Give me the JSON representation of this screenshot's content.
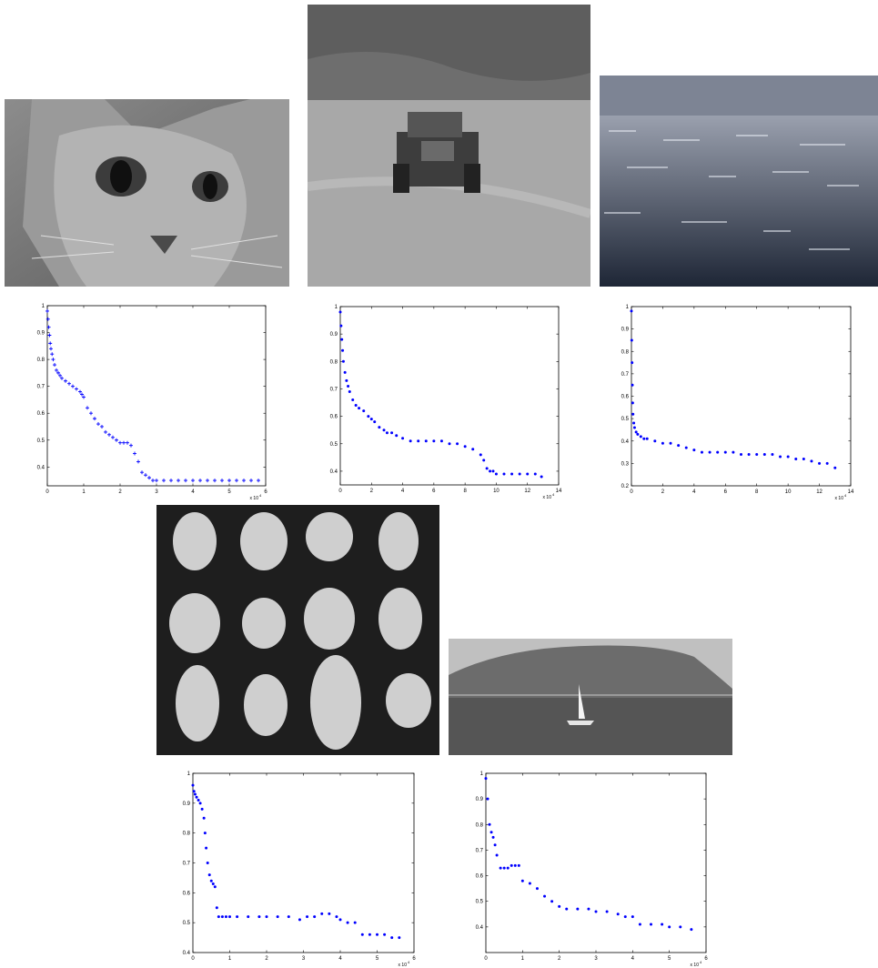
{
  "photos": [
    {
      "subject": "cat",
      "icon": "cat-photo-icon"
    },
    {
      "subject": "tank",
      "icon": "tank-photo-icon"
    },
    {
      "subject": "sea",
      "icon": "sea-photo-icon"
    },
    {
      "subject": "potatoes",
      "icon": "potatoes-photo-icon"
    },
    {
      "subject": "sailboat",
      "icon": "sailboat-photo-icon"
    }
  ],
  "colors": {
    "marker": "#0000ff",
    "axes": "#000000"
  },
  "chart_data": [
    {
      "type": "scatter",
      "marker": "plus",
      "xlim": [
        0,
        6
      ],
      "ylim": [
        0.33,
        1
      ],
      "xticks": [
        "0",
        "1",
        "2",
        "3",
        "4",
        "5",
        "6"
      ],
      "yticks": [
        "0.4",
        "0.5",
        "0.6",
        "0.7",
        "0.8",
        "0.9",
        "1"
      ],
      "ytick_values": [
        0.4,
        0.5,
        0.6,
        0.7,
        0.8,
        0.9,
        1
      ],
      "x_exponent": "x 10",
      "x_exponent_power": "4",
      "x": [
        0,
        0.02,
        0.04,
        0.06,
        0.08,
        0.1,
        0.13,
        0.16,
        0.2,
        0.25,
        0.3,
        0.35,
        0.4,
        0.5,
        0.6,
        0.7,
        0.8,
        0.9,
        0.95,
        1.0,
        1.1,
        1.2,
        1.3,
        1.4,
        1.5,
        1.6,
        1.7,
        1.8,
        1.9,
        2.0,
        2.1,
        2.2,
        2.3,
        2.4,
        2.5,
        2.6,
        2.7,
        2.8,
        2.9,
        3.0,
        3.2,
        3.4,
        3.6,
        3.8,
        4.0,
        4.2,
        4.4,
        4.6,
        4.8,
        5.0,
        5.2,
        5.4,
        5.6,
        5.8
      ],
      "y": [
        0.98,
        0.95,
        0.92,
        0.89,
        0.86,
        0.84,
        0.82,
        0.8,
        0.78,
        0.76,
        0.75,
        0.74,
        0.73,
        0.72,
        0.71,
        0.7,
        0.69,
        0.68,
        0.67,
        0.66,
        0.62,
        0.6,
        0.58,
        0.56,
        0.55,
        0.53,
        0.52,
        0.51,
        0.5,
        0.49,
        0.49,
        0.49,
        0.48,
        0.45,
        0.42,
        0.38,
        0.37,
        0.36,
        0.35,
        0.35,
        0.35,
        0.35,
        0.35,
        0.35,
        0.35,
        0.35,
        0.35,
        0.35,
        0.35,
        0.35,
        0.35,
        0.35,
        0.35,
        0.35
      ]
    },
    {
      "type": "scatter",
      "marker": "dot",
      "xlim": [
        0,
        14
      ],
      "ylim": [
        0.35,
        1
      ],
      "xticks": [
        "0",
        "2",
        "4",
        "6",
        "8",
        "10",
        "12",
        "14"
      ],
      "yticks": [
        "0.4",
        "0.5",
        "0.6",
        "0.7",
        "0.8",
        "0.9",
        "1"
      ],
      "ytick_values": [
        0.4,
        0.5,
        0.6,
        0.7,
        0.8,
        0.9,
        1
      ],
      "x_exponent": "x 10",
      "x_exponent_power": "4",
      "x": [
        0,
        0.05,
        0.1,
        0.15,
        0.2,
        0.3,
        0.4,
        0.5,
        0.6,
        0.8,
        1.0,
        1.2,
        1.5,
        1.8,
        2.0,
        2.2,
        2.5,
        2.8,
        3.0,
        3.3,
        3.6,
        4.0,
        4.5,
        5.0,
        5.5,
        6.0,
        6.5,
        7.0,
        7.5,
        8.0,
        8.5,
        9.0,
        9.2,
        9.4,
        9.6,
        9.8,
        10.0,
        10.5,
        11.0,
        11.5,
        12.0,
        12.5,
        12.9
      ],
      "y": [
        0.98,
        0.93,
        0.88,
        0.84,
        0.8,
        0.76,
        0.73,
        0.71,
        0.69,
        0.66,
        0.64,
        0.63,
        0.62,
        0.6,
        0.59,
        0.58,
        0.56,
        0.55,
        0.54,
        0.54,
        0.53,
        0.52,
        0.51,
        0.51,
        0.51,
        0.51,
        0.51,
        0.5,
        0.5,
        0.49,
        0.48,
        0.46,
        0.44,
        0.41,
        0.4,
        0.4,
        0.39,
        0.39,
        0.39,
        0.39,
        0.39,
        0.39,
        0.38
      ]
    },
    {
      "type": "scatter",
      "marker": "dot",
      "xlim": [
        0,
        14
      ],
      "ylim": [
        0.2,
        1
      ],
      "xticks": [
        "0",
        "2",
        "4",
        "6",
        "8",
        "10",
        "12",
        "14"
      ],
      "yticks": [
        "0.2",
        "0.3",
        "0.4",
        "0.5",
        "0.6",
        "0.7",
        "0.8",
        "0.9",
        "1"
      ],
      "ytick_values": [
        0.2,
        0.3,
        0.4,
        0.5,
        0.6,
        0.7,
        0.8,
        0.9,
        1
      ],
      "x_exponent": "x 10",
      "x_exponent_power": "4",
      "x": [
        0,
        0.02,
        0.04,
        0.06,
        0.08,
        0.1,
        0.15,
        0.2,
        0.3,
        0.4,
        0.6,
        0.8,
        1.0,
        1.5,
        2.0,
        2.5,
        3.0,
        3.5,
        4.0,
        4.5,
        5.0,
        5.5,
        6.0,
        6.5,
        7.0,
        7.5,
        8.0,
        8.5,
        9.0,
        9.5,
        10.0,
        10.5,
        11.0,
        11.5,
        12.0,
        12.5,
        13.0
      ],
      "y": [
        0.98,
        0.85,
        0.75,
        0.65,
        0.57,
        0.52,
        0.48,
        0.46,
        0.44,
        0.43,
        0.42,
        0.41,
        0.41,
        0.4,
        0.39,
        0.39,
        0.38,
        0.37,
        0.36,
        0.35,
        0.35,
        0.35,
        0.35,
        0.35,
        0.34,
        0.34,
        0.34,
        0.34,
        0.34,
        0.33,
        0.33,
        0.32,
        0.32,
        0.31,
        0.3,
        0.3,
        0.28
      ]
    },
    {
      "type": "scatter",
      "marker": "dot",
      "xlim": [
        0,
        6
      ],
      "ylim": [
        0.4,
        1
      ],
      "xticks": [
        "0",
        "1",
        "2",
        "3",
        "4",
        "5",
        "6"
      ],
      "yticks": [
        "0.4",
        "0.5",
        "0.6",
        "0.7",
        "0.8",
        "0.9",
        "1"
      ],
      "ytick_values": [
        0.4,
        0.5,
        0.6,
        0.7,
        0.8,
        0.9,
        1
      ],
      "x_exponent": "x 10",
      "x_exponent_power": "4",
      "x": [
        0,
        0.03,
        0.06,
        0.1,
        0.15,
        0.2,
        0.25,
        0.3,
        0.33,
        0.36,
        0.4,
        0.45,
        0.5,
        0.55,
        0.6,
        0.65,
        0.7,
        0.8,
        0.9,
        1.0,
        1.2,
        1.5,
        1.8,
        2.0,
        2.3,
        2.6,
        2.9,
        3.1,
        3.3,
        3.5,
        3.7,
        3.9,
        4.0,
        4.2,
        4.4,
        4.6,
        4.8,
        5.0,
        5.2,
        5.4,
        5.6
      ],
      "y": [
        0.96,
        0.94,
        0.93,
        0.92,
        0.91,
        0.9,
        0.88,
        0.85,
        0.8,
        0.75,
        0.7,
        0.66,
        0.64,
        0.63,
        0.62,
        0.55,
        0.52,
        0.52,
        0.52,
        0.52,
        0.52,
        0.52,
        0.52,
        0.52,
        0.52,
        0.52,
        0.51,
        0.52,
        0.52,
        0.53,
        0.53,
        0.52,
        0.51,
        0.5,
        0.5,
        0.46,
        0.46,
        0.46,
        0.46,
        0.45,
        0.45
      ]
    },
    {
      "type": "scatter",
      "marker": "dot",
      "xlim": [
        0,
        6
      ],
      "ylim": [
        0.3,
        1
      ],
      "xticks": [
        "0",
        "1",
        "2",
        "3",
        "4",
        "5",
        "6"
      ],
      "yticks": [
        "0.4",
        "0.5",
        "0.6",
        "0.7",
        "0.8",
        "0.9",
        "1"
      ],
      "ytick_values": [
        0.4,
        0.5,
        0.6,
        0.7,
        0.8,
        0.9,
        1
      ],
      "x_exponent": "x 10",
      "x_exponent_power": "4",
      "x": [
        0,
        0.05,
        0.1,
        0.15,
        0.2,
        0.25,
        0.3,
        0.4,
        0.5,
        0.6,
        0.7,
        0.8,
        0.9,
        1.0,
        1.2,
        1.4,
        1.6,
        1.8,
        2.0,
        2.2,
        2.5,
        2.8,
        3.0,
        3.3,
        3.6,
        3.8,
        4.0,
        4.2,
        4.5,
        4.8,
        5.0,
        5.3,
        5.6
      ],
      "y": [
        0.98,
        0.9,
        0.8,
        0.77,
        0.75,
        0.72,
        0.68,
        0.63,
        0.63,
        0.63,
        0.64,
        0.64,
        0.64,
        0.58,
        0.57,
        0.55,
        0.52,
        0.5,
        0.48,
        0.47,
        0.47,
        0.47,
        0.46,
        0.46,
        0.45,
        0.44,
        0.44,
        0.41,
        0.41,
        0.41,
        0.4,
        0.4,
        0.39
      ]
    }
  ]
}
